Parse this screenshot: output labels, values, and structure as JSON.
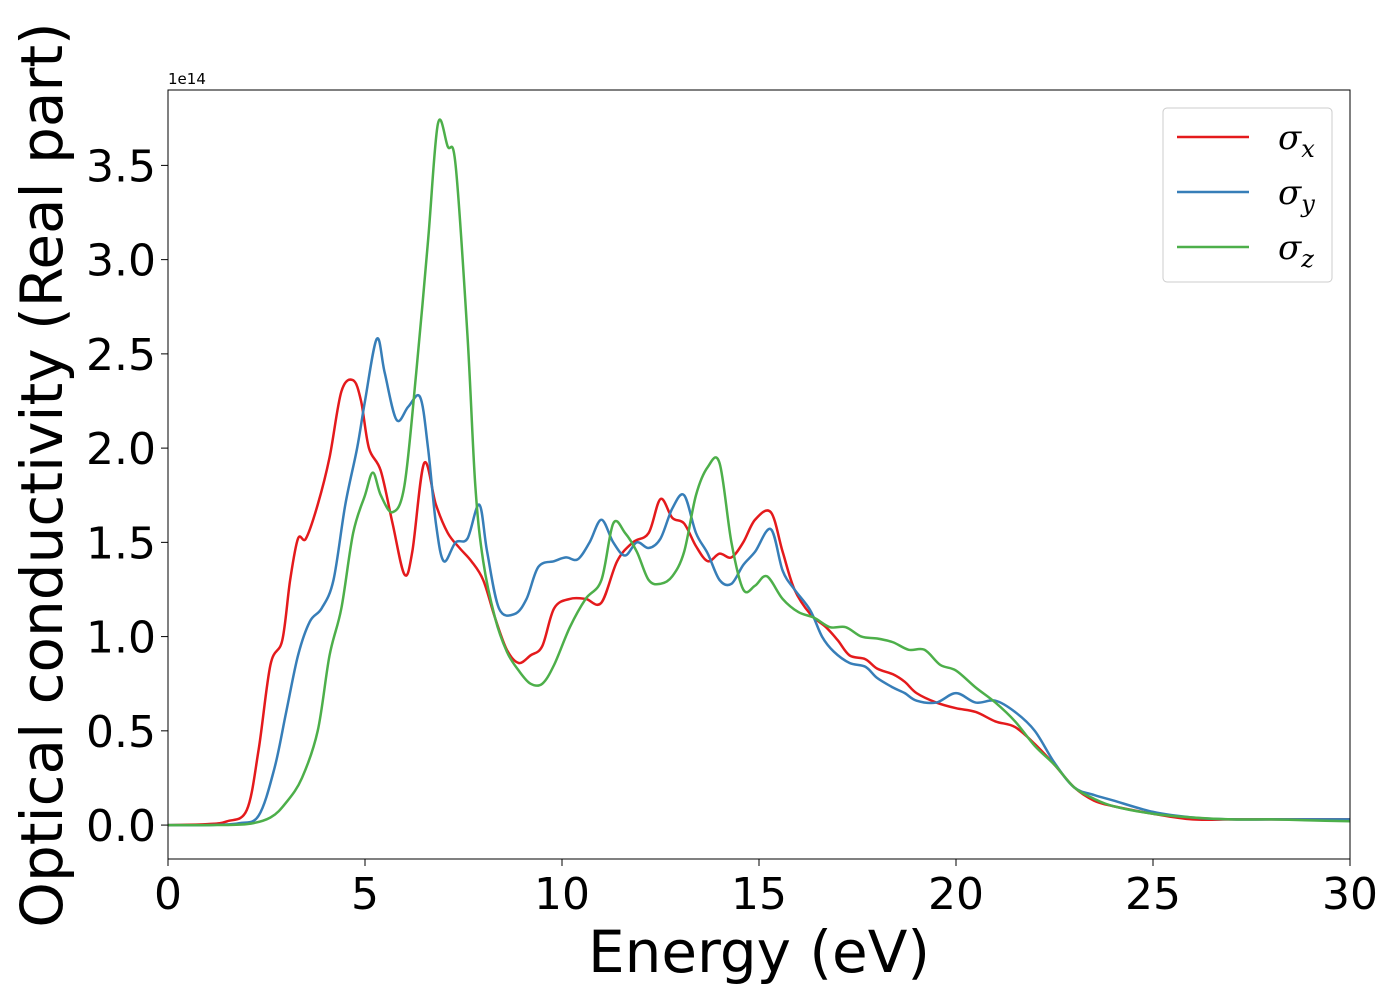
{
  "chart_data": {
    "type": "line",
    "xlabel": "Energy (eV)",
    "ylabel": "Optical conductivity (Real part)",
    "y_offset_text": "1e14",
    "xlim": [
      0,
      30
    ],
    "ylim": [
      -0.18,
      3.9
    ],
    "x_ticks": [
      0,
      5,
      10,
      15,
      20,
      25,
      30
    ],
    "x_tick_labels": [
      "0",
      "5",
      "10",
      "15",
      "20",
      "25",
      "30"
    ],
    "y_ticks": [
      0.0,
      0.5,
      1.0,
      1.5,
      2.0,
      2.5,
      3.0,
      3.5
    ],
    "y_tick_labels": [
      "0.0",
      "0.5",
      "1.0",
      "1.5",
      "2.0",
      "2.5",
      "3.0",
      "3.5"
    ],
    "grid": false,
    "legend_position": "top-right",
    "series": [
      {
        "name": "σx",
        "symbol": "σ",
        "subscript": "x",
        "color": "#e41a1c",
        "points": [
          [
            0,
            0
          ],
          [
            1,
            0.005
          ],
          [
            1.5,
            0.02
          ],
          [
            2,
            0.08
          ],
          [
            2.3,
            0.4
          ],
          [
            2.6,
            0.85
          ],
          [
            2.9,
            0.98
          ],
          [
            3.1,
            1.3
          ],
          [
            3.3,
            1.52
          ],
          [
            3.5,
            1.52
          ],
          [
            3.8,
            1.7
          ],
          [
            4.1,
            1.95
          ],
          [
            4.4,
            2.3
          ],
          [
            4.7,
            2.36
          ],
          [
            4.9,
            2.25
          ],
          [
            5.1,
            2.0
          ],
          [
            5.4,
            1.88
          ],
          [
            5.7,
            1.6
          ],
          [
            6.0,
            1.33
          ],
          [
            6.2,
            1.45
          ],
          [
            6.5,
            1.92
          ],
          [
            6.8,
            1.7
          ],
          [
            7.1,
            1.55
          ],
          [
            7.4,
            1.47
          ],
          [
            7.7,
            1.4
          ],
          [
            8.0,
            1.3
          ],
          [
            8.3,
            1.1
          ],
          [
            8.6,
            0.93
          ],
          [
            8.9,
            0.86
          ],
          [
            9.2,
            0.9
          ],
          [
            9.5,
            0.95
          ],
          [
            9.8,
            1.15
          ],
          [
            10.2,
            1.2
          ],
          [
            10.6,
            1.2
          ],
          [
            11.0,
            1.18
          ],
          [
            11.4,
            1.4
          ],
          [
            11.8,
            1.5
          ],
          [
            12.2,
            1.55
          ],
          [
            12.5,
            1.73
          ],
          [
            12.8,
            1.63
          ],
          [
            13.1,
            1.6
          ],
          [
            13.4,
            1.48
          ],
          [
            13.7,
            1.4
          ],
          [
            14.0,
            1.44
          ],
          [
            14.3,
            1.42
          ],
          [
            14.6,
            1.5
          ],
          [
            14.9,
            1.62
          ],
          [
            15.3,
            1.66
          ],
          [
            15.6,
            1.45
          ],
          [
            15.9,
            1.25
          ],
          [
            16.3,
            1.12
          ],
          [
            16.7,
            1.05
          ],
          [
            17.0,
            0.98
          ],
          [
            17.3,
            0.9
          ],
          [
            17.7,
            0.88
          ],
          [
            18.0,
            0.83
          ],
          [
            18.4,
            0.8
          ],
          [
            18.7,
            0.76
          ],
          [
            19.0,
            0.7
          ],
          [
            19.5,
            0.65
          ],
          [
            20.0,
            0.62
          ],
          [
            20.5,
            0.6
          ],
          [
            21.0,
            0.55
          ],
          [
            21.5,
            0.52
          ],
          [
            22.0,
            0.43
          ],
          [
            22.5,
            0.32
          ],
          [
            23.0,
            0.2
          ],
          [
            23.5,
            0.13
          ],
          [
            24.0,
            0.1
          ],
          [
            25.0,
            0.06
          ],
          [
            26.0,
            0.03
          ],
          [
            27.0,
            0.03
          ],
          [
            28.0,
            0.03
          ],
          [
            29.0,
            0.03
          ],
          [
            30.0,
            0.03
          ]
        ]
      },
      {
        "name": "σy",
        "symbol": "σ",
        "subscript": "y",
        "color": "#377eb8",
        "points": [
          [
            0,
            0
          ],
          [
            1,
            0
          ],
          [
            1.8,
            0.01
          ],
          [
            2.3,
            0.05
          ],
          [
            2.7,
            0.3
          ],
          [
            3.0,
            0.6
          ],
          [
            3.3,
            0.9
          ],
          [
            3.6,
            1.08
          ],
          [
            3.9,
            1.15
          ],
          [
            4.2,
            1.3
          ],
          [
            4.5,
            1.7
          ],
          [
            4.8,
            2.0
          ],
          [
            5.0,
            2.25
          ],
          [
            5.3,
            2.58
          ],
          [
            5.5,
            2.4
          ],
          [
            5.8,
            2.15
          ],
          [
            6.1,
            2.22
          ],
          [
            6.4,
            2.27
          ],
          [
            6.6,
            2.0
          ],
          [
            6.8,
            1.6
          ],
          [
            7.0,
            1.4
          ],
          [
            7.3,
            1.5
          ],
          [
            7.6,
            1.52
          ],
          [
            7.9,
            1.7
          ],
          [
            8.1,
            1.45
          ],
          [
            8.4,
            1.15
          ],
          [
            8.8,
            1.12
          ],
          [
            9.1,
            1.2
          ],
          [
            9.4,
            1.37
          ],
          [
            9.8,
            1.4
          ],
          [
            10.1,
            1.42
          ],
          [
            10.4,
            1.41
          ],
          [
            10.7,
            1.5
          ],
          [
            11.0,
            1.62
          ],
          [
            11.3,
            1.5
          ],
          [
            11.6,
            1.43
          ],
          [
            11.9,
            1.5
          ],
          [
            12.2,
            1.47
          ],
          [
            12.5,
            1.52
          ],
          [
            12.8,
            1.68
          ],
          [
            13.1,
            1.75
          ],
          [
            13.4,
            1.55
          ],
          [
            13.7,
            1.44
          ],
          [
            14.0,
            1.3
          ],
          [
            14.3,
            1.28
          ],
          [
            14.6,
            1.38
          ],
          [
            14.9,
            1.45
          ],
          [
            15.3,
            1.57
          ],
          [
            15.6,
            1.35
          ],
          [
            15.9,
            1.25
          ],
          [
            16.3,
            1.14
          ],
          [
            16.6,
            1.0
          ],
          [
            16.9,
            0.92
          ],
          [
            17.3,
            0.86
          ],
          [
            17.7,
            0.84
          ],
          [
            18.0,
            0.78
          ],
          [
            18.4,
            0.73
          ],
          [
            18.7,
            0.7
          ],
          [
            19.0,
            0.66
          ],
          [
            19.5,
            0.65
          ],
          [
            20.0,
            0.7
          ],
          [
            20.5,
            0.65
          ],
          [
            21.0,
            0.66
          ],
          [
            21.5,
            0.6
          ],
          [
            22.0,
            0.5
          ],
          [
            22.5,
            0.33
          ],
          [
            23.0,
            0.2
          ],
          [
            23.5,
            0.16
          ],
          [
            24.0,
            0.13
          ],
          [
            25.0,
            0.07
          ],
          [
            26.0,
            0.04
          ],
          [
            27.0,
            0.03
          ],
          [
            28.0,
            0.03
          ],
          [
            29.0,
            0.03
          ],
          [
            30.0,
            0.03
          ]
        ]
      },
      {
        "name": "σz",
        "symbol": "σ",
        "subscript": "z",
        "color": "#4daf4a",
        "points": [
          [
            0,
            0
          ],
          [
            1,
            0
          ],
          [
            2.0,
            0.005
          ],
          [
            2.6,
            0.04
          ],
          [
            3.0,
            0.12
          ],
          [
            3.4,
            0.25
          ],
          [
            3.8,
            0.5
          ],
          [
            4.1,
            0.9
          ],
          [
            4.4,
            1.15
          ],
          [
            4.7,
            1.55
          ],
          [
            5.0,
            1.75
          ],
          [
            5.2,
            1.87
          ],
          [
            5.4,
            1.75
          ],
          [
            5.7,
            1.66
          ],
          [
            6.0,
            1.8
          ],
          [
            6.3,
            2.4
          ],
          [
            6.6,
            3.1
          ],
          [
            6.85,
            3.72
          ],
          [
            7.1,
            3.6
          ],
          [
            7.3,
            3.5
          ],
          [
            7.6,
            2.6
          ],
          [
            7.8,
            1.8
          ],
          [
            8.0,
            1.4
          ],
          [
            8.3,
            1.1
          ],
          [
            8.6,
            0.92
          ],
          [
            8.9,
            0.82
          ],
          [
            9.2,
            0.75
          ],
          [
            9.5,
            0.75
          ],
          [
            9.8,
            0.85
          ],
          [
            10.2,
            1.05
          ],
          [
            10.6,
            1.2
          ],
          [
            11.0,
            1.3
          ],
          [
            11.3,
            1.6
          ],
          [
            11.6,
            1.55
          ],
          [
            11.9,
            1.45
          ],
          [
            12.2,
            1.3
          ],
          [
            12.5,
            1.28
          ],
          [
            12.8,
            1.32
          ],
          [
            13.1,
            1.45
          ],
          [
            13.4,
            1.75
          ],
          [
            13.7,
            1.9
          ],
          [
            14.0,
            1.92
          ],
          [
            14.3,
            1.5
          ],
          [
            14.6,
            1.25
          ],
          [
            14.9,
            1.27
          ],
          [
            15.2,
            1.32
          ],
          [
            15.6,
            1.2
          ],
          [
            16.0,
            1.13
          ],
          [
            16.4,
            1.1
          ],
          [
            16.8,
            1.05
          ],
          [
            17.2,
            1.05
          ],
          [
            17.6,
            1.0
          ],
          [
            18.0,
            0.99
          ],
          [
            18.4,
            0.97
          ],
          [
            18.8,
            0.93
          ],
          [
            19.2,
            0.93
          ],
          [
            19.6,
            0.85
          ],
          [
            20.0,
            0.82
          ],
          [
            20.5,
            0.73
          ],
          [
            21.0,
            0.65
          ],
          [
            21.5,
            0.55
          ],
          [
            22.0,
            0.42
          ],
          [
            22.5,
            0.32
          ],
          [
            23.0,
            0.2
          ],
          [
            23.5,
            0.14
          ],
          [
            24.0,
            0.1
          ],
          [
            25.0,
            0.06
          ],
          [
            26.0,
            0.04
          ],
          [
            27.0,
            0.03
          ],
          [
            28.0,
            0.03
          ],
          [
            29.0,
            0.025
          ],
          [
            30.0,
            0.02
          ]
        ]
      }
    ]
  }
}
